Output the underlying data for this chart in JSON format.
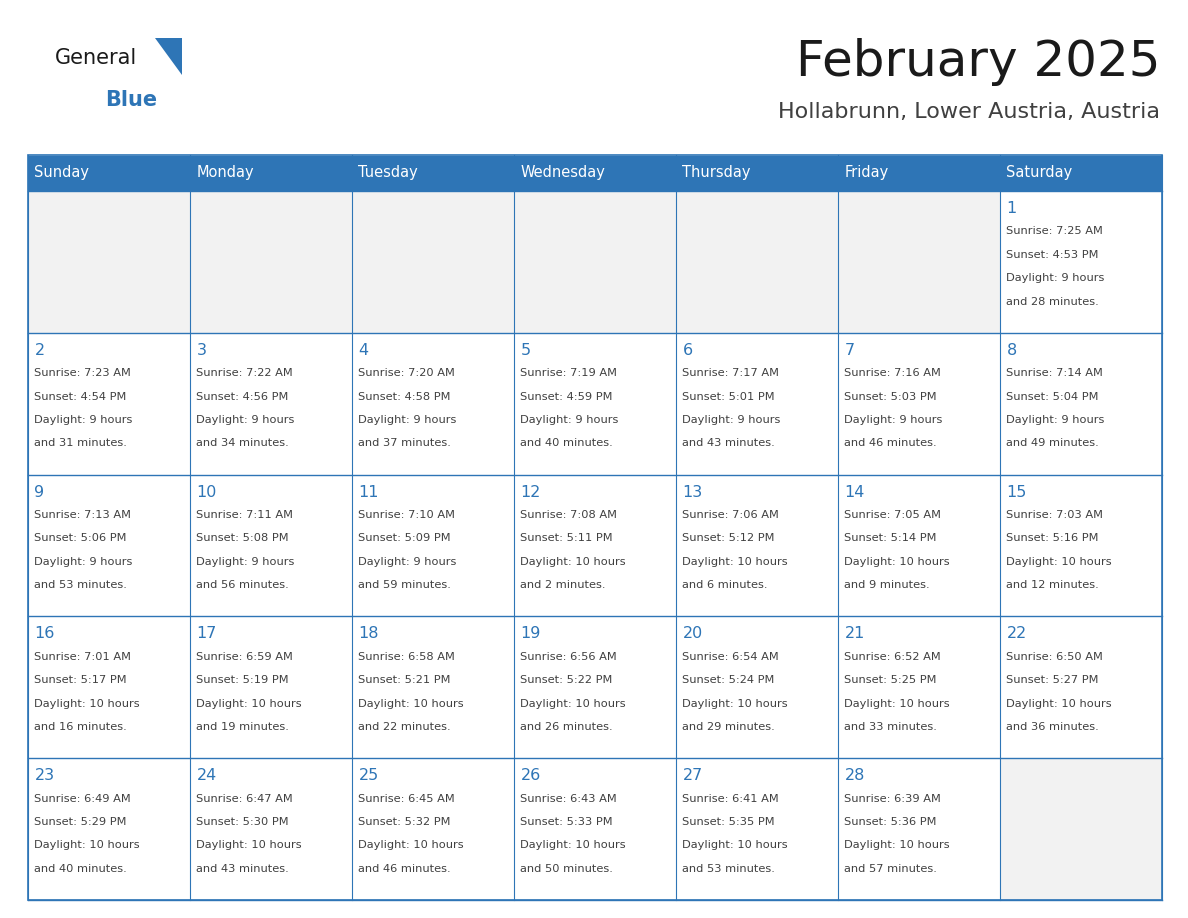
{
  "title": "February 2025",
  "subtitle": "Hollabrunn, Lower Austria, Austria",
  "header_bg": "#2E75B6",
  "header_text_color": "#FFFFFF",
  "cell_bg": "#FFFFFF",
  "empty_row_bg": "#F2F2F2",
  "border_color": "#2E75B6",
  "cell_border_color": "#2E75B6",
  "day_headers": [
    "Sunday",
    "Monday",
    "Tuesday",
    "Wednesday",
    "Thursday",
    "Friday",
    "Saturday"
  ],
  "title_color": "#1a1a1a",
  "subtitle_color": "#404040",
  "day_num_color": "#2E75B6",
  "info_color": "#404040",
  "logo_general_color": "#1a1a1a",
  "logo_blue_color": "#2E75B6",
  "calendar_data": [
    [
      {
        "day": "",
        "info": ""
      },
      {
        "day": "",
        "info": ""
      },
      {
        "day": "",
        "info": ""
      },
      {
        "day": "",
        "info": ""
      },
      {
        "day": "",
        "info": ""
      },
      {
        "day": "",
        "info": ""
      },
      {
        "day": "1",
        "info": "Sunrise: 7:25 AM\nSunset: 4:53 PM\nDaylight: 9 hours\nand 28 minutes."
      }
    ],
    [
      {
        "day": "2",
        "info": "Sunrise: 7:23 AM\nSunset: 4:54 PM\nDaylight: 9 hours\nand 31 minutes."
      },
      {
        "day": "3",
        "info": "Sunrise: 7:22 AM\nSunset: 4:56 PM\nDaylight: 9 hours\nand 34 minutes."
      },
      {
        "day": "4",
        "info": "Sunrise: 7:20 AM\nSunset: 4:58 PM\nDaylight: 9 hours\nand 37 minutes."
      },
      {
        "day": "5",
        "info": "Sunrise: 7:19 AM\nSunset: 4:59 PM\nDaylight: 9 hours\nand 40 minutes."
      },
      {
        "day": "6",
        "info": "Sunrise: 7:17 AM\nSunset: 5:01 PM\nDaylight: 9 hours\nand 43 minutes."
      },
      {
        "day": "7",
        "info": "Sunrise: 7:16 AM\nSunset: 5:03 PM\nDaylight: 9 hours\nand 46 minutes."
      },
      {
        "day": "8",
        "info": "Sunrise: 7:14 AM\nSunset: 5:04 PM\nDaylight: 9 hours\nand 49 minutes."
      }
    ],
    [
      {
        "day": "9",
        "info": "Sunrise: 7:13 AM\nSunset: 5:06 PM\nDaylight: 9 hours\nand 53 minutes."
      },
      {
        "day": "10",
        "info": "Sunrise: 7:11 AM\nSunset: 5:08 PM\nDaylight: 9 hours\nand 56 minutes."
      },
      {
        "day": "11",
        "info": "Sunrise: 7:10 AM\nSunset: 5:09 PM\nDaylight: 9 hours\nand 59 minutes."
      },
      {
        "day": "12",
        "info": "Sunrise: 7:08 AM\nSunset: 5:11 PM\nDaylight: 10 hours\nand 2 minutes."
      },
      {
        "day": "13",
        "info": "Sunrise: 7:06 AM\nSunset: 5:12 PM\nDaylight: 10 hours\nand 6 minutes."
      },
      {
        "day": "14",
        "info": "Sunrise: 7:05 AM\nSunset: 5:14 PM\nDaylight: 10 hours\nand 9 minutes."
      },
      {
        "day": "15",
        "info": "Sunrise: 7:03 AM\nSunset: 5:16 PM\nDaylight: 10 hours\nand 12 minutes."
      }
    ],
    [
      {
        "day": "16",
        "info": "Sunrise: 7:01 AM\nSunset: 5:17 PM\nDaylight: 10 hours\nand 16 minutes."
      },
      {
        "day": "17",
        "info": "Sunrise: 6:59 AM\nSunset: 5:19 PM\nDaylight: 10 hours\nand 19 minutes."
      },
      {
        "day": "18",
        "info": "Sunrise: 6:58 AM\nSunset: 5:21 PM\nDaylight: 10 hours\nand 22 minutes."
      },
      {
        "day": "19",
        "info": "Sunrise: 6:56 AM\nSunset: 5:22 PM\nDaylight: 10 hours\nand 26 minutes."
      },
      {
        "day": "20",
        "info": "Sunrise: 6:54 AM\nSunset: 5:24 PM\nDaylight: 10 hours\nand 29 minutes."
      },
      {
        "day": "21",
        "info": "Sunrise: 6:52 AM\nSunset: 5:25 PM\nDaylight: 10 hours\nand 33 minutes."
      },
      {
        "day": "22",
        "info": "Sunrise: 6:50 AM\nSunset: 5:27 PM\nDaylight: 10 hours\nand 36 minutes."
      }
    ],
    [
      {
        "day": "23",
        "info": "Sunrise: 6:49 AM\nSunset: 5:29 PM\nDaylight: 10 hours\nand 40 minutes."
      },
      {
        "day": "24",
        "info": "Sunrise: 6:47 AM\nSunset: 5:30 PM\nDaylight: 10 hours\nand 43 minutes."
      },
      {
        "day": "25",
        "info": "Sunrise: 6:45 AM\nSunset: 5:32 PM\nDaylight: 10 hours\nand 46 minutes."
      },
      {
        "day": "26",
        "info": "Sunrise: 6:43 AM\nSunset: 5:33 PM\nDaylight: 10 hours\nand 50 minutes."
      },
      {
        "day": "27",
        "info": "Sunrise: 6:41 AM\nSunset: 5:35 PM\nDaylight: 10 hours\nand 53 minutes."
      },
      {
        "day": "28",
        "info": "Sunrise: 6:39 AM\nSunset: 5:36 PM\nDaylight: 10 hours\nand 57 minutes."
      },
      {
        "day": "",
        "info": ""
      }
    ]
  ]
}
